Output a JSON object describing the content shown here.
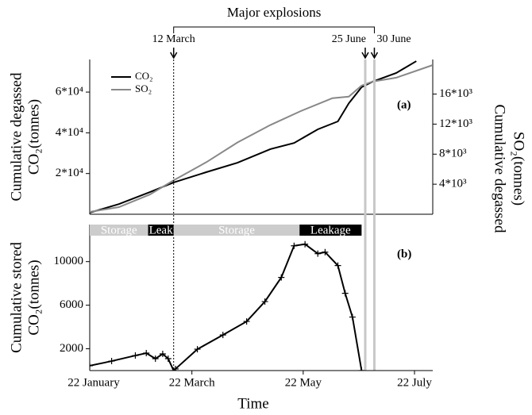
{
  "chart_data": [
    {
      "type": "line",
      "panel_label": "(a)",
      "ylabel": [
        "Cumulative degassed",
        "CO₂(tonnes)"
      ],
      "y2label": [
        "Cumulative degassed",
        "SO₂(tonnes)"
      ],
      "legend": "upper left",
      "xlim": [
        4,
        192
      ],
      "ylim": [
        0,
        76000
      ],
      "y2lim": [
        0,
        20600
      ],
      "yticks": [
        {
          "value": 20000,
          "label": "2*10⁴"
        },
        {
          "value": 40000,
          "label": "4*10⁴"
        },
        {
          "value": 60000,
          "label": "6*10⁴"
        }
      ],
      "y2ticks": [
        {
          "value": 4000,
          "label": "4*10³"
        },
        {
          "value": 8000,
          "label": "8*10³"
        },
        {
          "value": 12000,
          "label": "12*10³"
        },
        {
          "value": 16000,
          "label": "16*10³"
        }
      ],
      "series": [
        {
          "name": "CO₂",
          "color": "#000000",
          "x": [
            4,
            20,
            37,
            50,
            68,
            85,
            103,
            116,
            129,
            140,
            146,
            153,
            159,
            172,
            183
          ],
          "values": [
            780,
            5000,
            10900,
            15600,
            20700,
            25300,
            32000,
            35000,
            41700,
            45600,
            54500,
            62400,
            65100,
            69400,
            75200
          ]
        },
        {
          "name": "SO₂",
          "color": "#888888",
          "axis": "y2",
          "x": [
            4,
            20,
            37,
            50,
            68,
            85,
            103,
            120,
            137,
            146,
            153,
            159,
            172,
            192
          ],
          "values": [
            315,
            950,
            2630,
            4520,
            6940,
            9560,
            11880,
            13770,
            15450,
            15660,
            17130,
            17660,
            18180,
            19860
          ]
        }
      ],
      "events_title": "Major explosions",
      "events": [
        {
          "label": "12 March",
          "x": 50
        },
        {
          "label": "25 June",
          "x": 155
        },
        {
          "label": "30 June",
          "x": 160
        }
      ]
    },
    {
      "type": "line",
      "panel_label": "(b)",
      "ylabel": [
        "Cumulative stored",
        "CO₂(tonnes)"
      ],
      "xlabel": "Time",
      "xlim": [
        4,
        192
      ],
      "ylim": [
        0,
        13400
      ],
      "yticks": [
        2000,
        6000,
        10000
      ],
      "xticks": [
        {
          "value": 0,
          "label": "22 January"
        },
        {
          "value": 60,
          "label": "22 March"
        },
        {
          "value": 121,
          "label": "22 May"
        },
        {
          "value": 182,
          "label": "22 July"
        }
      ],
      "series": [
        {
          "color": "#000000",
          "x": [
            4,
            16,
            29,
            35,
            40,
            44,
            47,
            50,
            51,
            63,
            77,
            90,
            100,
            109,
            116,
            122,
            129,
            133,
            140,
            144,
            148,
            153
          ],
          "values": [
            440,
            870,
            1380,
            1600,
            1090,
            1530,
            1090,
            0,
            150,
            1960,
            3270,
            4510,
            6330,
            8550,
            11450,
            11600,
            10730,
            10870,
            9640,
            7090,
            4910,
            0
          ]
        }
      ],
      "phases": [
        {
          "label": "Storage",
          "start": 4,
          "end": 36,
          "color": "#cccccc"
        },
        {
          "label": "Leak",
          "start": 36,
          "end": 50,
          "color": "#000000"
        },
        {
          "label": "Storage",
          "start": 50,
          "end": 119,
          "color": "#cccccc"
        },
        {
          "label": "Leakage",
          "start": 119,
          "end": 153,
          "color": "#000000"
        }
      ]
    }
  ]
}
